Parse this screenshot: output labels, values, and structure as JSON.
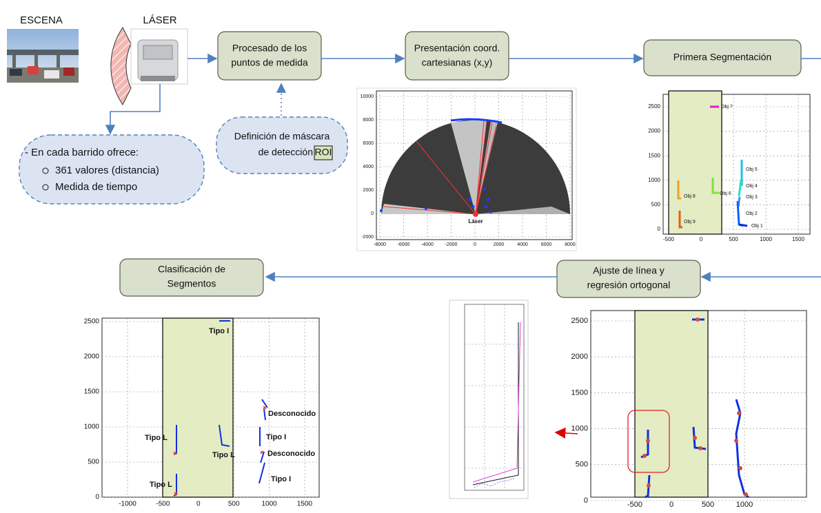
{
  "scene": {
    "scene_label": "ESCENA",
    "laser_label": "LÁSER"
  },
  "steps": [
    {
      "lines": [
        "Procesado de los",
        "puntos de medida"
      ]
    },
    {
      "lines": [
        "Presentación coord.",
        "cartesianas (x,y)"
      ]
    },
    {
      "lines": [
        "Primera Segmentación"
      ]
    },
    {
      "lines": [
        "Ajuste de línea y",
        "regresión ortogonal"
      ]
    },
    {
      "lines": [
        "Clasificación de",
        "Segmentos"
      ]
    }
  ],
  "laser_output": {
    "title": "- En cada barrido ofrece:",
    "items": [
      "361 valores (distancia)",
      "Medida de tiempo"
    ]
  },
  "roi_note": {
    "lines": [
      "Definición de máscara",
      "de detección"
    ],
    "highlight": "ROI"
  },
  "plots": {
    "cartesian": {
      "xticks": [
        -8000,
        -6000,
        -4000,
        -2000,
        0,
        2000,
        4000,
        6000,
        8000
      ],
      "yticks": [
        10000,
        8000,
        6000,
        4000,
        2000,
        0,
        -2000
      ],
      "origin_label": "Láser"
    },
    "segmentation": {
      "xticks": [
        -500,
        0,
        500,
        1000,
        1500
      ],
      "yticks": [
        2500,
        2000,
        1500,
        1000,
        500,
        0
      ],
      "objects": [
        "Obj 7",
        "Obj 5",
        "Obj 4",
        "Obj 3",
        "Obj 2",
        "Obj 1",
        "Obj 6",
        "Obj 8",
        "Obj 9"
      ]
    },
    "classification": {
      "xticks": [
        -1000,
        -500,
        0,
        500,
        1000,
        1500
      ],
      "yticks": [
        2500,
        2000,
        1500,
        1000,
        500,
        0
      ],
      "labels": [
        "Tipo I",
        "Desconocido",
        "Tipo I",
        "Desconocido",
        "Tipo I",
        "Tipo L",
        "Tipo L",
        "Tipo L"
      ]
    },
    "line_fit": {
      "xticks": [
        -500,
        0,
        500,
        1000
      ],
      "yticks": [
        2500,
        2000,
        1500,
        1000,
        500,
        0
      ]
    }
  }
}
